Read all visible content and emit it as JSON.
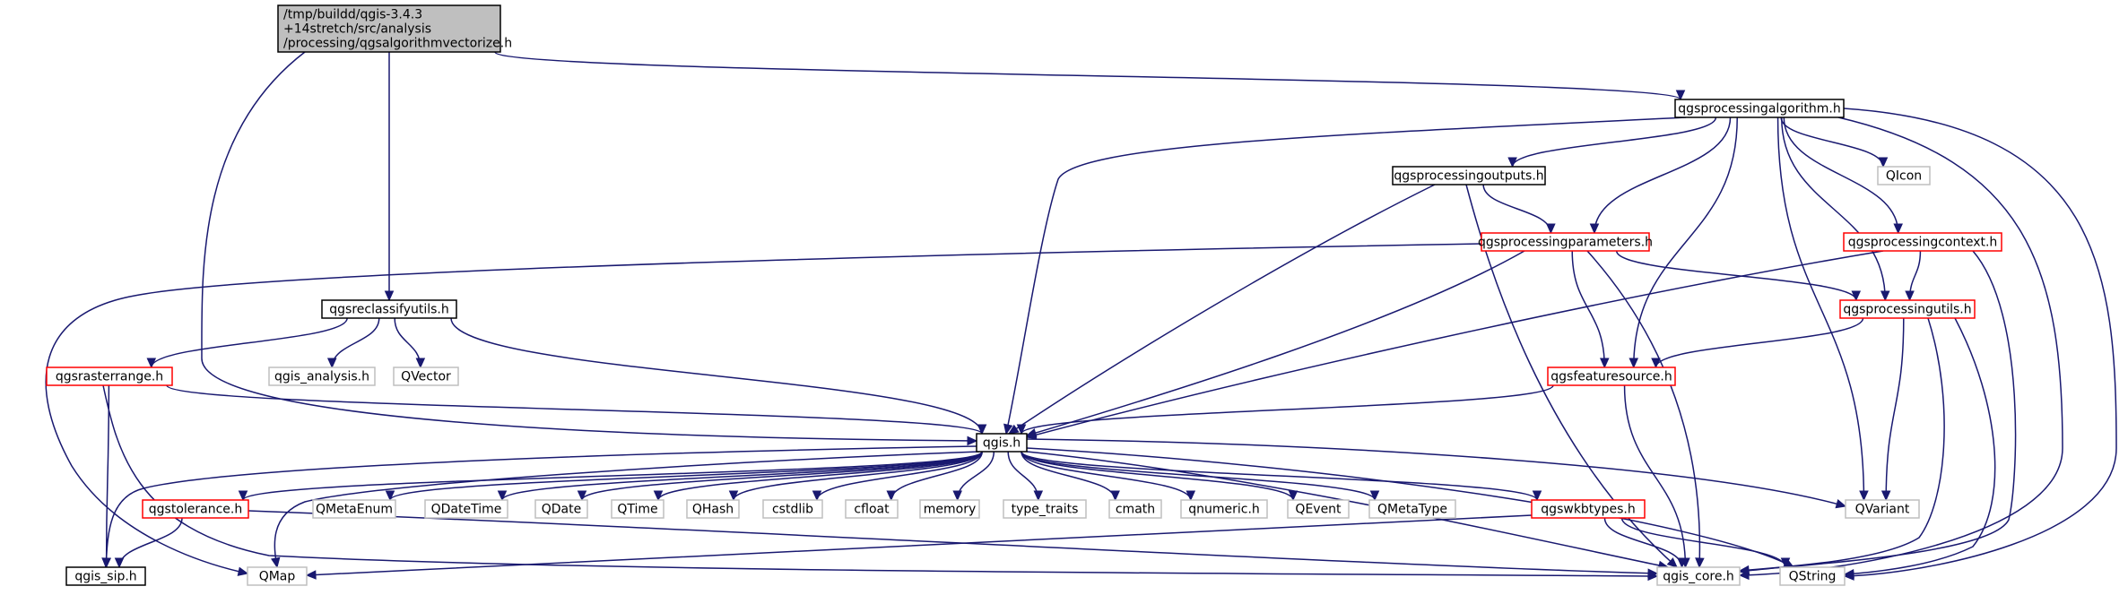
{
  "style": {
    "edge_color": "#191970",
    "root_fill": "#bfbfbf",
    "root_border": "#000000",
    "normal_border": "#000000",
    "truncated_border": "#ff0000",
    "external_border": "#bfbfbf",
    "external_text": "#7f7f7f"
  },
  "graph": {
    "nodes": [
      {
        "id": "root",
        "kind": "root",
        "lines": [
          "/tmp/buildd/qgis-3.4.3",
          "+14stretch/src/analysis",
          "/processing/qgsalgorithmvectorize.h"
        ]
      },
      {
        "id": "pa",
        "kind": "normal",
        "lines": [
          "qgsprocessingalgorithm.h"
        ]
      },
      {
        "id": "po",
        "kind": "normal",
        "lines": [
          "qgsprocessingoutputs.h"
        ]
      },
      {
        "id": "qicon",
        "kind": "external",
        "lines": [
          "QIcon"
        ]
      },
      {
        "id": "pp",
        "kind": "truncated",
        "lines": [
          "qgsprocessingparameters.h"
        ]
      },
      {
        "id": "pc",
        "kind": "truncated",
        "lines": [
          "qgsprocessingcontext.h"
        ]
      },
      {
        "id": "rcu",
        "kind": "normal",
        "lines": [
          "qgsreclassifyutils.h"
        ]
      },
      {
        "id": "pu",
        "kind": "truncated",
        "lines": [
          "qgsprocessingutils.h"
        ]
      },
      {
        "id": "rr",
        "kind": "truncated",
        "lines": [
          "qgsrasterrange.h"
        ]
      },
      {
        "id": "qan",
        "kind": "external",
        "lines": [
          "qgis_analysis.h"
        ]
      },
      {
        "id": "qvec",
        "kind": "external",
        "lines": [
          "QVector"
        ]
      },
      {
        "id": "fs",
        "kind": "truncated",
        "lines": [
          "qgsfeaturesource.h"
        ]
      },
      {
        "id": "qgis",
        "kind": "normal",
        "lines": [
          "qgis.h"
        ]
      },
      {
        "id": "tol",
        "kind": "truncated",
        "lines": [
          "qgstolerance.h"
        ]
      },
      {
        "id": "qmetaenum",
        "kind": "external",
        "lines": [
          "QMetaEnum"
        ]
      },
      {
        "id": "qdatetime",
        "kind": "external",
        "lines": [
          "QDateTime"
        ]
      },
      {
        "id": "qdate",
        "kind": "external",
        "lines": [
          "QDate"
        ]
      },
      {
        "id": "qtime",
        "kind": "external",
        "lines": [
          "QTime"
        ]
      },
      {
        "id": "qhash",
        "kind": "external",
        "lines": [
          "QHash"
        ]
      },
      {
        "id": "cstdlib",
        "kind": "external",
        "lines": [
          "cstdlib"
        ]
      },
      {
        "id": "cfloat",
        "kind": "external",
        "lines": [
          "cfloat"
        ]
      },
      {
        "id": "memory",
        "kind": "external",
        "lines": [
          "memory"
        ]
      },
      {
        "id": "typetraits",
        "kind": "external",
        "lines": [
          "type_traits"
        ]
      },
      {
        "id": "cmath",
        "kind": "external",
        "lines": [
          "cmath"
        ]
      },
      {
        "id": "qnumeric",
        "kind": "external",
        "lines": [
          "qnumeric.h"
        ]
      },
      {
        "id": "qevent",
        "kind": "external",
        "lines": [
          "QEvent"
        ]
      },
      {
        "id": "qmetatype",
        "kind": "external",
        "lines": [
          "QMetaType"
        ]
      },
      {
        "id": "wkb",
        "kind": "truncated",
        "lines": [
          "qgswkbtypes.h"
        ]
      },
      {
        "id": "qvariant",
        "kind": "external",
        "lines": [
          "QVariant"
        ]
      },
      {
        "id": "sip",
        "kind": "normal",
        "lines": [
          "qgis_sip.h"
        ]
      },
      {
        "id": "qmap",
        "kind": "external",
        "lines": [
          "QMap"
        ]
      },
      {
        "id": "core",
        "kind": "external",
        "lines": [
          "qgis_core.h"
        ]
      },
      {
        "id": "qstring",
        "kind": "external",
        "lines": [
          "QString"
        ]
      }
    ],
    "edges": [
      {
        "from": "root",
        "to": "pa"
      },
      {
        "from": "root",
        "to": "rcu"
      },
      {
        "from": "root",
        "to": "qgis"
      },
      {
        "from": "pa",
        "to": "po"
      },
      {
        "from": "pa",
        "to": "qicon"
      },
      {
        "from": "pa",
        "to": "pp"
      },
      {
        "from": "pa",
        "to": "pc"
      },
      {
        "from": "pa",
        "to": "pu"
      },
      {
        "from": "pa",
        "to": "fs"
      },
      {
        "from": "pa",
        "to": "qgis"
      },
      {
        "from": "pa",
        "to": "qvariant"
      },
      {
        "from": "pa",
        "to": "core"
      },
      {
        "from": "pa",
        "to": "qstring"
      },
      {
        "from": "po",
        "to": "pp"
      },
      {
        "from": "po",
        "to": "qgis"
      },
      {
        "from": "po",
        "to": "core"
      },
      {
        "from": "pp",
        "to": "pu"
      },
      {
        "from": "pp",
        "to": "fs"
      },
      {
        "from": "pp",
        "to": "qgis"
      },
      {
        "from": "pp",
        "to": "core"
      },
      {
        "from": "pp",
        "to": "qmap"
      },
      {
        "from": "pc",
        "to": "pu"
      },
      {
        "from": "pc",
        "to": "qgis"
      },
      {
        "from": "pc",
        "to": "core"
      },
      {
        "from": "pu",
        "to": "fs"
      },
      {
        "from": "pu",
        "to": "qvariant"
      },
      {
        "from": "pu",
        "to": "core"
      },
      {
        "from": "pu",
        "to": "qstring"
      },
      {
        "from": "rcu",
        "to": "rr"
      },
      {
        "from": "rcu",
        "to": "qan"
      },
      {
        "from": "rcu",
        "to": "qvec"
      },
      {
        "from": "rcu",
        "to": "qgis"
      },
      {
        "from": "rr",
        "to": "qgis"
      },
      {
        "from": "rr",
        "to": "sip"
      },
      {
        "from": "rr",
        "to": "core"
      },
      {
        "from": "fs",
        "to": "qgis"
      },
      {
        "from": "fs",
        "to": "core"
      },
      {
        "from": "qgis",
        "to": "tol"
      },
      {
        "from": "qgis",
        "to": "qmetaenum"
      },
      {
        "from": "qgis",
        "to": "qdatetime"
      },
      {
        "from": "qgis",
        "to": "qdate"
      },
      {
        "from": "qgis",
        "to": "qtime"
      },
      {
        "from": "qgis",
        "to": "qhash"
      },
      {
        "from": "qgis",
        "to": "cstdlib"
      },
      {
        "from": "qgis",
        "to": "cfloat"
      },
      {
        "from": "qgis",
        "to": "memory"
      },
      {
        "from": "qgis",
        "to": "typetraits"
      },
      {
        "from": "qgis",
        "to": "cmath"
      },
      {
        "from": "qgis",
        "to": "qnumeric"
      },
      {
        "from": "qgis",
        "to": "qevent"
      },
      {
        "from": "qgis",
        "to": "qmetatype"
      },
      {
        "from": "qgis",
        "to": "wkb"
      },
      {
        "from": "qgis",
        "to": "qvariant"
      },
      {
        "from": "qgis",
        "to": "sip"
      },
      {
        "from": "qgis",
        "to": "qmap"
      },
      {
        "from": "qgis",
        "to": "core"
      },
      {
        "from": "qgis",
        "to": "qstring"
      },
      {
        "from": "tol",
        "to": "sip"
      },
      {
        "from": "tol",
        "to": "core"
      },
      {
        "from": "wkb",
        "to": "qmap"
      },
      {
        "from": "wkb",
        "to": "core"
      },
      {
        "from": "wkb",
        "to": "qstring"
      }
    ]
  }
}
